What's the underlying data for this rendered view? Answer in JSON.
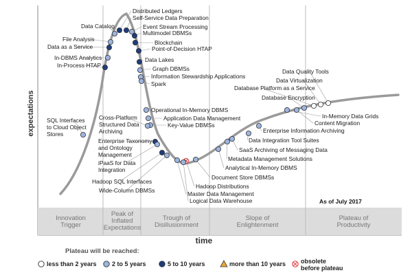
{
  "chart_data": {
    "type": "scatter",
    "ylabel": "expectations",
    "xlabel": "time",
    "as_of": "As of July 2017",
    "phases": [
      [
        "Innovation",
        "Trigger"
      ],
      [
        "Peak of",
        "Inflated",
        "Expectations"
      ],
      [
        "Trough of",
        "Disillusionment"
      ],
      [
        "Slope of",
        "Enlightenment"
      ],
      [
        "Plateau of",
        "Productivity"
      ]
    ],
    "legend": {
      "title": "Plateau will be reached:",
      "items": [
        {
          "label": "less than 2 years",
          "color": "#ffffff",
          "shape": "circle"
        },
        {
          "label": "2 to 5 years",
          "color": "#9db5df",
          "shape": "circle"
        },
        {
          "label": "5 to 10 years",
          "color": "#1f3d7a",
          "shape": "circle"
        },
        {
          "label": "more than 10 years",
          "color": "#f0a830",
          "shape": "triangle"
        },
        {
          "label": "obsolete before plateau",
          "color": "#e05050",
          "shape": "cross"
        }
      ]
    },
    "technologies": [
      {
        "name": "Data Catalog",
        "color": "#9db5df"
      },
      {
        "name": "Distributed Ledgers",
        "color": "#1f3d7a"
      },
      {
        "name": "Self-Service Data Preparation",
        "color": "#1f3d7a"
      },
      {
        "name": "Event Stream Processing",
        "color": "#9db5df"
      },
      {
        "name": "Multimodel DBMSs",
        "color": "#1f3d7a"
      },
      {
        "name": "File Analysis",
        "color": "#9db5df"
      },
      {
        "name": "Data as a Service",
        "color": "#1f3d7a"
      },
      {
        "name": "Blockchain",
        "color": "#1f3d7a"
      },
      {
        "name": "Point-of-Decision HTAP",
        "color": "#1f3d7a"
      },
      {
        "name": "In-DBMS Analytics",
        "color": "#9db5df"
      },
      {
        "name": "In-Process HTAP",
        "color": "#1f3d7a"
      },
      {
        "name": "Data Lakes",
        "color": "#1f3d7a"
      },
      {
        "name": "Graph DBMSs",
        "color": "#9db5df"
      },
      {
        "name": "Information Stewardship Applications",
        "color": "#9db5df"
      },
      {
        "name": "Spark",
        "color": "#9db5df"
      },
      {
        "name": "Operational In-Memory DBMS",
        "color": "#9db5df"
      },
      {
        "name": "Application Data Management",
        "color": "#9db5df"
      },
      {
        "name": "Key-Value DBMSs",
        "color": "#9db5df"
      },
      {
        "name": "SQL Interfaces to Cloud Object Stores",
        "color": "#9db5df"
      },
      {
        "name": "Cross-Platform Structured Data Archiving",
        "color": "#9db5df"
      },
      {
        "name": "Enterprise Taxonomy and Ontology Management",
        "color": "#1f3d7a"
      },
      {
        "name": "iPaaS for Data Integration",
        "color": "#9db5df"
      },
      {
        "name": "Hadoop SQL Interfaces",
        "color": "#1f3d7a"
      },
      {
        "name": "Wide-Column DBMSs",
        "color": "#9db5df"
      },
      {
        "name": "Hadoop Distributions",
        "color": "#e05050"
      },
      {
        "name": "Master Data Management",
        "color": "#9db5df"
      },
      {
        "name": "Logical Data Warehouse",
        "color": "#9db5df"
      },
      {
        "name": "Document Store DBMSs",
        "color": "#9db5df"
      },
      {
        "name": "Analytical In-Memory DBMS",
        "color": "#9db5df"
      },
      {
        "name": "Metadata Management Solutions",
        "color": "#9db5df"
      },
      {
        "name": "SaaS Archiving of Messaging Data",
        "color": "#9db5df"
      },
      {
        "name": "Data Integration Tool Suites",
        "color": "#9db5df"
      },
      {
        "name": "Enterprise Information Archiving",
        "color": "#9db5df"
      },
      {
        "name": "In-Memory Data Grids",
        "color": "#9db5df"
      },
      {
        "name": "Content Migration",
        "color": "#9db5df"
      },
      {
        "name": "Database Encryption",
        "color": "#9db5df"
      },
      {
        "name": "Database Platform as a Service",
        "color": "#ffffff"
      },
      {
        "name": "Data Virtualization",
        "color": "#ffffff"
      },
      {
        "name": "Data Quality Tools",
        "color": "#ffffff"
      }
    ]
  }
}
